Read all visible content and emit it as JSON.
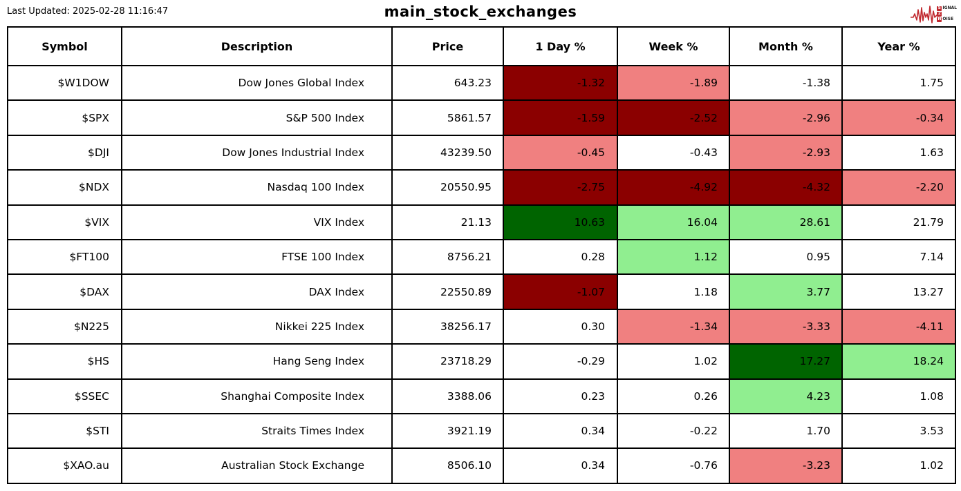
{
  "header": {
    "last_updated": "Last Updated: 2025-02-28 11:16:47",
    "title": "main_stock_exchanges",
    "logo": {
      "line1_leading": "S",
      "line1_rest": "IGNAL",
      "line2_leading": "2",
      "line2_rest": "",
      "line3_leading": "N",
      "line3_rest": "OISE",
      "brand_color": "#c0282e"
    }
  },
  "colors": {
    "strong_down": "#8b0000",
    "down": "#f08080",
    "strong_up": "#006400",
    "up": "#90ee90",
    "neutral": "#ffffff"
  },
  "chart_data": {
    "type": "table",
    "title": "main_stock_exchanges",
    "columns": [
      "Symbol",
      "Description",
      "Price",
      "1 Day %",
      "Week %",
      "Month %",
      "Year %"
    ],
    "rows": [
      {
        "symbol": "$W1DOW",
        "description": "Dow Jones Global Index",
        "price": "643.23",
        "changes": [
          {
            "value": "-1.32",
            "tone": "strong_down"
          },
          {
            "value": "-1.89",
            "tone": "down"
          },
          {
            "value": "-1.38",
            "tone": "neutral"
          },
          {
            "value": "1.75",
            "tone": "neutral"
          }
        ]
      },
      {
        "symbol": "$SPX",
        "description": "S&P 500 Index",
        "price": "5861.57",
        "changes": [
          {
            "value": "-1.59",
            "tone": "strong_down"
          },
          {
            "value": "-2.52",
            "tone": "strong_down"
          },
          {
            "value": "-2.96",
            "tone": "down"
          },
          {
            "value": "-0.34",
            "tone": "down"
          }
        ]
      },
      {
        "symbol": "$DJI",
        "description": "Dow Jones Industrial Index",
        "price": "43239.50",
        "changes": [
          {
            "value": "-0.45",
            "tone": "down"
          },
          {
            "value": "-0.43",
            "tone": "neutral"
          },
          {
            "value": "-2.93",
            "tone": "down"
          },
          {
            "value": "1.63",
            "tone": "neutral"
          }
        ]
      },
      {
        "symbol": "$NDX",
        "description": "Nasdaq 100 Index",
        "price": "20550.95",
        "changes": [
          {
            "value": "-2.75",
            "tone": "strong_down"
          },
          {
            "value": "-4.92",
            "tone": "strong_down"
          },
          {
            "value": "-4.32",
            "tone": "strong_down"
          },
          {
            "value": "-2.20",
            "tone": "down"
          }
        ]
      },
      {
        "symbol": "$VIX",
        "description": "VIX Index",
        "price": "21.13",
        "changes": [
          {
            "value": "10.63",
            "tone": "strong_up"
          },
          {
            "value": "16.04",
            "tone": "up"
          },
          {
            "value": "28.61",
            "tone": "up"
          },
          {
            "value": "21.79",
            "tone": "neutral"
          }
        ]
      },
      {
        "symbol": "$FT100",
        "description": "FTSE 100 Index",
        "price": "8756.21",
        "changes": [
          {
            "value": "0.28",
            "tone": "neutral"
          },
          {
            "value": "1.12",
            "tone": "up"
          },
          {
            "value": "0.95",
            "tone": "neutral"
          },
          {
            "value": "7.14",
            "tone": "neutral"
          }
        ]
      },
      {
        "symbol": "$DAX",
        "description": "DAX Index",
        "price": "22550.89",
        "changes": [
          {
            "value": "-1.07",
            "tone": "strong_down"
          },
          {
            "value": "1.18",
            "tone": "neutral"
          },
          {
            "value": "3.77",
            "tone": "up"
          },
          {
            "value": "13.27",
            "tone": "neutral"
          }
        ]
      },
      {
        "symbol": "$N225",
        "description": "Nikkei 225 Index",
        "price": "38256.17",
        "changes": [
          {
            "value": "0.30",
            "tone": "neutral"
          },
          {
            "value": "-1.34",
            "tone": "down"
          },
          {
            "value": "-3.33",
            "tone": "down"
          },
          {
            "value": "-4.11",
            "tone": "down"
          }
        ]
      },
      {
        "symbol": "$HS",
        "description": "Hang Seng Index",
        "price": "23718.29",
        "changes": [
          {
            "value": "-0.29",
            "tone": "neutral"
          },
          {
            "value": "1.02",
            "tone": "neutral"
          },
          {
            "value": "17.27",
            "tone": "strong_up"
          },
          {
            "value": "18.24",
            "tone": "up"
          }
        ]
      },
      {
        "symbol": "$SSEC",
        "description": "Shanghai Composite Index",
        "price": "3388.06",
        "changes": [
          {
            "value": "0.23",
            "tone": "neutral"
          },
          {
            "value": "0.26",
            "tone": "neutral"
          },
          {
            "value": "4.23",
            "tone": "up"
          },
          {
            "value": "1.08",
            "tone": "neutral"
          }
        ]
      },
      {
        "symbol": "$STI",
        "description": "Straits Times Index",
        "price": "3921.19",
        "changes": [
          {
            "value": "0.34",
            "tone": "neutral"
          },
          {
            "value": "-0.22",
            "tone": "neutral"
          },
          {
            "value": "1.70",
            "tone": "neutral"
          },
          {
            "value": "3.53",
            "tone": "neutral"
          }
        ]
      },
      {
        "symbol": "$XAO.au",
        "description": "Australian Stock Exchange",
        "price": "8506.10",
        "changes": [
          {
            "value": "0.34",
            "tone": "neutral"
          },
          {
            "value": "-0.76",
            "tone": "neutral"
          },
          {
            "value": "-3.23",
            "tone": "down"
          },
          {
            "value": "1.02",
            "tone": "neutral"
          }
        ]
      }
    ]
  }
}
